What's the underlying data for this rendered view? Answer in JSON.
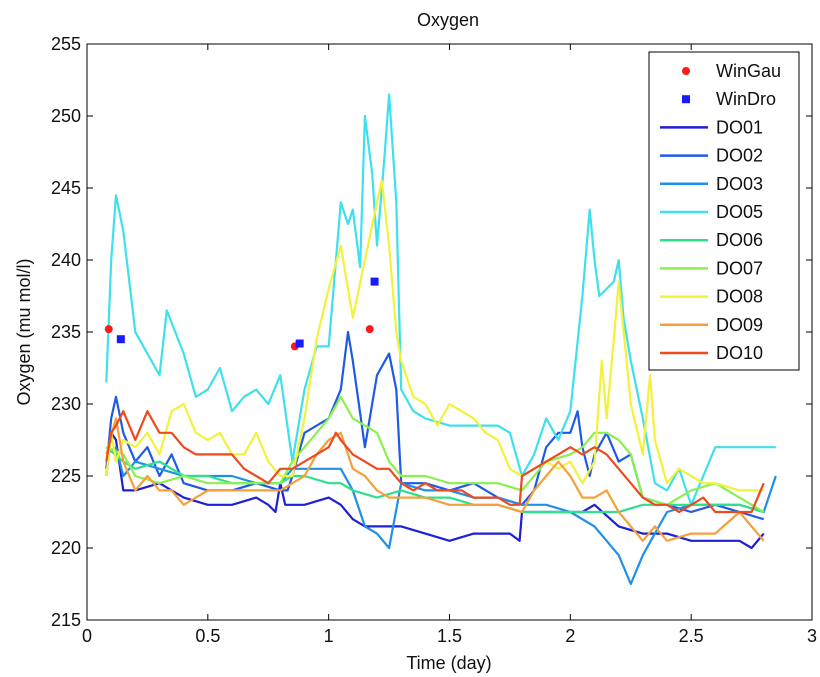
{
  "chart_data": {
    "type": "line",
    "title": "Oxygen",
    "xlabel": "Time (day)",
    "ylabel": "Oxygen (mu mol/l)",
    "xlim": [
      0,
      3
    ],
    "ylim": [
      215,
      255
    ],
    "xticks": [
      0,
      0.5,
      1,
      1.5,
      2,
      2.5,
      3
    ],
    "xtick_labels": [
      "0",
      "0.5",
      "1",
      "1.5",
      "2",
      "2.5",
      "3"
    ],
    "yticks": [
      215,
      220,
      225,
      230,
      235,
      240,
      245,
      250,
      255
    ],
    "ytick_labels": [
      "215",
      "220",
      "225",
      "230",
      "235",
      "240",
      "245",
      "250",
      "255"
    ],
    "grid": false,
    "legend": "top-right",
    "points": [
      {
        "name": "WinGau",
        "color": "#ff1a1a",
        "marker": "circle",
        "x": [
          0.09,
          0.86,
          1.17
        ],
        "y": [
          235.2,
          234.0,
          235.2
        ]
      },
      {
        "name": "WinDro",
        "color": "#1a1aff",
        "marker": "square",
        "x": [
          0.14,
          0.88,
          1.19
        ],
        "y": [
          234.5,
          234.2,
          238.5
        ]
      }
    ],
    "series": [
      {
        "name": "DO01",
        "color": "#1f1fd6",
        "x": [
          0.08,
          0.1,
          0.12,
          0.15,
          0.2,
          0.3,
          0.4,
          0.5,
          0.6,
          0.7,
          0.75,
          0.78,
          0.8,
          0.82,
          0.85,
          0.9,
          1.0,
          1.05,
          1.1,
          1.15,
          1.2,
          1.3,
          1.4,
          1.5,
          1.6,
          1.7,
          1.75,
          1.79,
          1.8,
          1.85,
          1.9,
          2.0,
          2.05,
          2.1,
          2.2,
          2.3,
          2.4,
          2.5,
          2.6,
          2.7,
          2.75,
          2.8
        ],
        "y": [
          225,
          228,
          227.5,
          224,
          224,
          224.5,
          223.5,
          223,
          223,
          223.5,
          223,
          222.5,
          224.5,
          223,
          223,
          223,
          223.5,
          223,
          222,
          221.5,
          221.5,
          221.5,
          221,
          220.5,
          221,
          221,
          221,
          220.5,
          222.5,
          222.5,
          222.5,
          222.5,
          222.5,
          223,
          221.5,
          221,
          221,
          220.5,
          220.5,
          220.5,
          220,
          221
        ]
      },
      {
        "name": "DO02",
        "color": "#1f5ae6",
        "x": [
          0.08,
          0.1,
          0.12,
          0.15,
          0.2,
          0.25,
          0.3,
          0.35,
          0.4,
          0.5,
          0.6,
          0.7,
          0.8,
          0.83,
          0.85,
          0.9,
          1.0,
          1.05,
          1.08,
          1.1,
          1.15,
          1.2,
          1.25,
          1.28,
          1.3,
          1.4,
          1.5,
          1.6,
          1.7,
          1.8,
          1.85,
          1.9,
          1.95,
          2.0,
          2.03,
          2.05,
          2.08,
          2.1,
          2.15,
          2.2,
          2.25,
          2.3,
          2.4,
          2.5,
          2.6,
          2.7,
          2.8
        ],
        "y": [
          225.5,
          229,
          230.5,
          228,
          226,
          227,
          225,
          226.5,
          224.5,
          224,
          224,
          224.5,
          224,
          224,
          225,
          228,
          229,
          231,
          235,
          233,
          227,
          232,
          233.5,
          231,
          224.5,
          224.5,
          224,
          224.5,
          223.5,
          223,
          224,
          227,
          228,
          228,
          229.5,
          227,
          225,
          226.5,
          228,
          226,
          226.5,
          223.5,
          223,
          222.5,
          223,
          222.5,
          222
        ]
      },
      {
        "name": "DO03",
        "color": "#1e90e8",
        "x": [
          0.08,
          0.12,
          0.15,
          0.2,
          0.3,
          0.4,
          0.5,
          0.6,
          0.7,
          0.8,
          0.85,
          0.9,
          1.0,
          1.05,
          1.1,
          1.15,
          1.2,
          1.25,
          1.3,
          1.4,
          1.5,
          1.6,
          1.7,
          1.8,
          1.9,
          2.0,
          2.1,
          2.15,
          2.2,
          2.25,
          2.3,
          2.4,
          2.5,
          2.6,
          2.7,
          2.8,
          2.85
        ],
        "y": [
          226.5,
          227,
          225,
          226,
          225.5,
          225,
          225,
          225,
          224.5,
          224.5,
          225.5,
          225.5,
          225.5,
          225.5,
          224,
          221.5,
          221,
          220,
          224.5,
          224,
          224,
          223.5,
          223.5,
          223,
          223,
          222.5,
          221.5,
          220.5,
          219.5,
          217.5,
          219.5,
          222.5,
          223,
          223,
          223,
          222.5,
          225
        ]
      },
      {
        "name": "DO05",
        "color": "#3ee0ee",
        "x": [
          0.08,
          0.1,
          0.12,
          0.15,
          0.2,
          0.25,
          0.3,
          0.33,
          0.4,
          0.45,
          0.5,
          0.55,
          0.6,
          0.65,
          0.7,
          0.75,
          0.8,
          0.85,
          0.9,
          0.95,
          1.0,
          1.05,
          1.08,
          1.1,
          1.13,
          1.15,
          1.18,
          1.2,
          1.23,
          1.25,
          1.28,
          1.3,
          1.35,
          1.4,
          1.5,
          1.6,
          1.7,
          1.75,
          1.8,
          1.85,
          1.9,
          1.95,
          2.0,
          2.05,
          2.08,
          2.1,
          2.12,
          2.15,
          2.18,
          2.2,
          2.22,
          2.25,
          2.3,
          2.35,
          2.4,
          2.45,
          2.5,
          2.6,
          2.7,
          2.8,
          2.85
        ],
        "y": [
          231.5,
          240,
          244.5,
          242,
          235,
          233.5,
          232,
          236.5,
          233.5,
          230.5,
          231,
          232.5,
          229.5,
          230.5,
          231,
          230,
          232,
          226,
          231,
          234,
          234,
          244,
          242.5,
          243.5,
          239.5,
          250,
          246,
          241,
          247,
          251.5,
          244,
          231,
          229.5,
          229,
          228.5,
          228.5,
          228.5,
          228,
          225,
          226.5,
          229,
          227.5,
          229.5,
          237.5,
          243.5,
          240,
          237.5,
          238,
          238.5,
          240,
          236,
          233,
          229,
          224.5,
          224,
          225.5,
          223,
          227,
          227,
          227,
          227
        ]
      },
      {
        "name": "DO06",
        "color": "#2fe08a",
        "x": [
          0.08,
          0.15,
          0.2,
          0.3,
          0.4,
          0.5,
          0.6,
          0.7,
          0.8,
          0.85,
          0.9,
          1.0,
          1.05,
          1.1,
          1.2,
          1.3,
          1.4,
          1.5,
          1.6,
          1.7,
          1.8,
          1.9,
          2.0,
          2.1,
          2.2,
          2.3,
          2.4,
          2.5,
          2.6,
          2.7,
          2.8
        ],
        "y": [
          227,
          226,
          225.5,
          226,
          225,
          225,
          224.5,
          224.5,
          224.5,
          225,
          225,
          224.5,
          224.5,
          224,
          223.5,
          224,
          223.5,
          223.5,
          223,
          223,
          222.5,
          222.5,
          222.5,
          222.5,
          222.5,
          223,
          223,
          223,
          223,
          223,
          222.5
        ]
      },
      {
        "name": "DO07",
        "color": "#8af050",
        "x": [
          0.08,
          0.15,
          0.2,
          0.3,
          0.4,
          0.5,
          0.6,
          0.7,
          0.8,
          0.85,
          0.9,
          0.95,
          1.0,
          1.05,
          1.1,
          1.15,
          1.2,
          1.25,
          1.3,
          1.4,
          1.5,
          1.6,
          1.7,
          1.8,
          1.9,
          2.0,
          2.05,
          2.1,
          2.15,
          2.2,
          2.25,
          2.3,
          2.4,
          2.5,
          2.6,
          2.7,
          2.8
        ],
        "y": [
          227,
          226.5,
          225,
          224.5,
          225,
          224.5,
          224.5,
          224.5,
          224.5,
          226,
          227,
          228,
          229,
          230.5,
          229,
          228.5,
          228,
          226,
          225,
          225,
          224.5,
          224.5,
          224.5,
          224,
          226,
          226.5,
          227,
          228,
          228,
          227.5,
          226.5,
          223.5,
          223,
          224,
          224.5,
          223.5,
          222.5
        ]
      },
      {
        "name": "DO08",
        "color": "#f2f23c",
        "x": [
          0.08,
          0.1,
          0.12,
          0.15,
          0.2,
          0.25,
          0.3,
          0.35,
          0.4,
          0.45,
          0.5,
          0.55,
          0.6,
          0.65,
          0.7,
          0.75,
          0.8,
          0.85,
          0.9,
          0.95,
          1.0,
          1.05,
          1.1,
          1.15,
          1.2,
          1.22,
          1.25,
          1.28,
          1.3,
          1.35,
          1.4,
          1.45,
          1.5,
          1.55,
          1.6,
          1.65,
          1.7,
          1.75,
          1.8,
          1.85,
          1.9,
          1.95,
          2.0,
          2.05,
          2.1,
          2.13,
          2.15,
          2.18,
          2.2,
          2.25,
          2.3,
          2.33,
          2.35,
          2.4,
          2.45,
          2.5,
          2.55,
          2.6,
          2.7,
          2.8
        ],
        "y": [
          225,
          228,
          226,
          227.5,
          227,
          228,
          226.5,
          229.5,
          230,
          228,
          227.5,
          228,
          226.5,
          226.5,
          228,
          226,
          225,
          225,
          229,
          234.5,
          238,
          241,
          236,
          240,
          244,
          245.5,
          241,
          235,
          233,
          230.5,
          230,
          228.5,
          230,
          229.5,
          229,
          228,
          227.5,
          225.5,
          225,
          225.5,
          226,
          225.5,
          226,
          224.5,
          226,
          233,
          229,
          234.5,
          238.5,
          230,
          226.5,
          232,
          227.5,
          224.5,
          225.5,
          225,
          224.5,
          224.5,
          224,
          224
        ]
      },
      {
        "name": "DO09",
        "color": "#f5a03a",
        "x": [
          0.08,
          0.12,
          0.15,
          0.2,
          0.25,
          0.3,
          0.35,
          0.4,
          0.5,
          0.6,
          0.7,
          0.8,
          0.85,
          0.9,
          0.95,
          1.0,
          1.05,
          1.1,
          1.15,
          1.2,
          1.25,
          1.3,
          1.4,
          1.5,
          1.6,
          1.7,
          1.8,
          1.85,
          1.9,
          1.95,
          2.0,
          2.05,
          2.1,
          2.15,
          2.2,
          2.25,
          2.3,
          2.35,
          2.4,
          2.5,
          2.6,
          2.7,
          2.8
        ],
        "y": [
          226.5,
          229,
          226,
          224,
          225,
          224,
          224,
          223,
          224,
          224,
          224,
          224,
          224.5,
          225,
          226.5,
          227.5,
          228,
          225.5,
          225,
          224,
          223.5,
          223.5,
          223.5,
          223,
          223,
          223,
          222.5,
          224,
          225,
          226,
          225,
          223.5,
          223.5,
          224,
          222.5,
          221.5,
          220.5,
          221.5,
          220.5,
          221,
          221,
          222.5,
          220.5
        ]
      },
      {
        "name": "DO10",
        "color": "#ee4a1e",
        "x": [
          0.08,
          0.1,
          0.12,
          0.15,
          0.2,
          0.25,
          0.3,
          0.35,
          0.4,
          0.45,
          0.5,
          0.55,
          0.6,
          0.65,
          0.7,
          0.75,
          0.8,
          0.85,
          0.9,
          0.95,
          1.0,
          1.03,
          1.05,
          1.1,
          1.15,
          1.2,
          1.25,
          1.3,
          1.35,
          1.4,
          1.45,
          1.5,
          1.55,
          1.6,
          1.65,
          1.7,
          1.75,
          1.79,
          1.8,
          1.85,
          1.9,
          1.95,
          2.0,
          2.05,
          2.1,
          2.15,
          2.2,
          2.25,
          2.3,
          2.35,
          2.4,
          2.45,
          2.5,
          2.55,
          2.6,
          2.65,
          2.7,
          2.75,
          2.8
        ],
        "y": [
          226,
          228,
          228.5,
          229.5,
          227.5,
          229.5,
          228,
          228,
          227,
          226.5,
          226.5,
          226.5,
          226.5,
          225.5,
          225,
          224.5,
          225.5,
          225.5,
          226,
          226.5,
          227,
          228,
          227.5,
          226.5,
          226,
          225.5,
          225.5,
          224.5,
          224,
          224.5,
          224,
          224,
          224,
          223.5,
          223.5,
          223.5,
          223,
          223,
          225,
          225.5,
          226,
          226.5,
          227,
          226.5,
          227,
          226.5,
          225.5,
          224.5,
          223.5,
          223,
          223,
          222.5,
          223,
          223.5,
          222.5,
          222.5,
          222.5,
          222.5,
          224.5
        ]
      }
    ]
  }
}
